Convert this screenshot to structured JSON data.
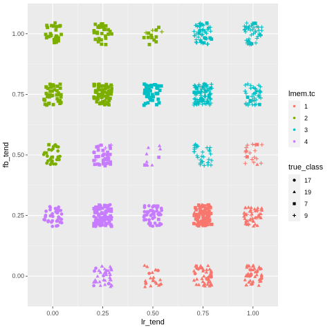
{
  "chart_data": {
    "type": "scatter",
    "xlabel": "lr_tend",
    "ylabel": "fb_tend",
    "x_ticks": [
      "0.00",
      "0.25",
      "0.50",
      "0.75",
      "1.00"
    ],
    "y_ticks": [
      "0.00",
      "0.25",
      "0.50",
      "0.75",
      "1.00"
    ],
    "xlim": [
      -0.125,
      1.125
    ],
    "ylim": [
      -0.125,
      1.125
    ],
    "grid": true,
    "jitter_note": "points jittered about grid values",
    "legend_placement": "right",
    "color_legend": {
      "title": "lmem.tc",
      "entries": [
        {
          "label": "1",
          "color": "#F8766D"
        },
        {
          "label": "2",
          "color": "#7CAE00"
        },
        {
          "label": "3",
          "color": "#00BFC4"
        },
        {
          "label": "4",
          "color": "#C77CFF"
        }
      ]
    },
    "shape_legend": {
      "title": "true_class",
      "entries": [
        {
          "label": "17",
          "shape": "circle"
        },
        {
          "label": "19",
          "shape": "triangle"
        },
        {
          "label": "7",
          "shape": "square"
        },
        {
          "label": "9",
          "shape": "plus"
        }
      ]
    },
    "clusters": [
      {
        "x": 0.0,
        "y": 1.0,
        "n": 28,
        "color": "2",
        "shapes": [
          "7"
        ]
      },
      {
        "x": 0.25,
        "y": 1.0,
        "n": 28,
        "color": "2",
        "shapes": [
          "7"
        ]
      },
      {
        "x": 0.5,
        "y": 1.0,
        "n": 14,
        "color": "2",
        "shapes": [
          "7",
          "9"
        ]
      },
      {
        "x": 0.75,
        "y": 1.0,
        "n": 50,
        "color": "3",
        "shapes": [
          "9",
          "7"
        ]
      },
      {
        "x": 1.0,
        "y": 1.0,
        "n": 45,
        "color": "3",
        "shapes": [
          "9",
          "7"
        ]
      },
      {
        "x": 0.0,
        "y": 0.75,
        "n": 42,
        "color": "2",
        "shapes": [
          "7"
        ]
      },
      {
        "x": 0.25,
        "y": 0.75,
        "n": 70,
        "color": "2",
        "shapes": [
          "7",
          "9"
        ]
      },
      {
        "x": 0.5,
        "y": 0.75,
        "n": 40,
        "color": "3",
        "shapes": [
          "7"
        ]
      },
      {
        "x": 0.75,
        "y": 0.75,
        "n": 90,
        "color": "3",
        "shapes": [
          "9",
          "7"
        ]
      },
      {
        "x": 1.0,
        "y": 0.75,
        "n": 40,
        "color": "3",
        "shapes": [
          "9",
          "7"
        ]
      },
      {
        "x": 0.0,
        "y": 0.5,
        "n": 28,
        "color": "2",
        "shapes": [
          "17",
          "7"
        ]
      },
      {
        "x": 0.25,
        "y": 0.5,
        "n": 40,
        "color": "4",
        "shapes": [
          "7",
          "9"
        ]
      },
      {
        "x": 0.5,
        "y": 0.5,
        "n": 10,
        "color": "4",
        "shapes": [
          "19",
          "7"
        ]
      },
      {
        "x": 0.75,
        "y": 0.5,
        "n": 32,
        "color": "3",
        "shapes": [
          "9"
        ]
      },
      {
        "x": 1.0,
        "y": 0.5,
        "n": 20,
        "color": "1",
        "shapes": [
          "9",
          "7",
          "19"
        ]
      },
      {
        "x": 0.0,
        "y": 0.25,
        "n": 40,
        "color": "4",
        "shapes": [
          "17"
        ]
      },
      {
        "x": 0.25,
        "y": 0.25,
        "n": 90,
        "color": "4",
        "shapes": [
          "7",
          "17"
        ]
      },
      {
        "x": 0.5,
        "y": 0.25,
        "n": 50,
        "color": "4",
        "shapes": [
          "17",
          "7"
        ]
      },
      {
        "x": 0.75,
        "y": 0.25,
        "n": 80,
        "color": "1",
        "shapes": [
          "7",
          "19"
        ]
      },
      {
        "x": 1.0,
        "y": 0.25,
        "n": 50,
        "color": "1",
        "shapes": [
          "19",
          "9"
        ]
      },
      {
        "x": 0.25,
        "y": 0.0,
        "n": 40,
        "color": "4",
        "shapes": [
          "19",
          "17"
        ]
      },
      {
        "x": 0.5,
        "y": 0.0,
        "n": 22,
        "color": "1",
        "shapes": [
          "19",
          "17"
        ]
      },
      {
        "x": 0.75,
        "y": 0.0,
        "n": 45,
        "color": "1",
        "shapes": [
          "19",
          "17"
        ]
      },
      {
        "x": 1.0,
        "y": 0.0,
        "n": 45,
        "color": "1",
        "shapes": [
          "19",
          "17"
        ]
      }
    ]
  }
}
